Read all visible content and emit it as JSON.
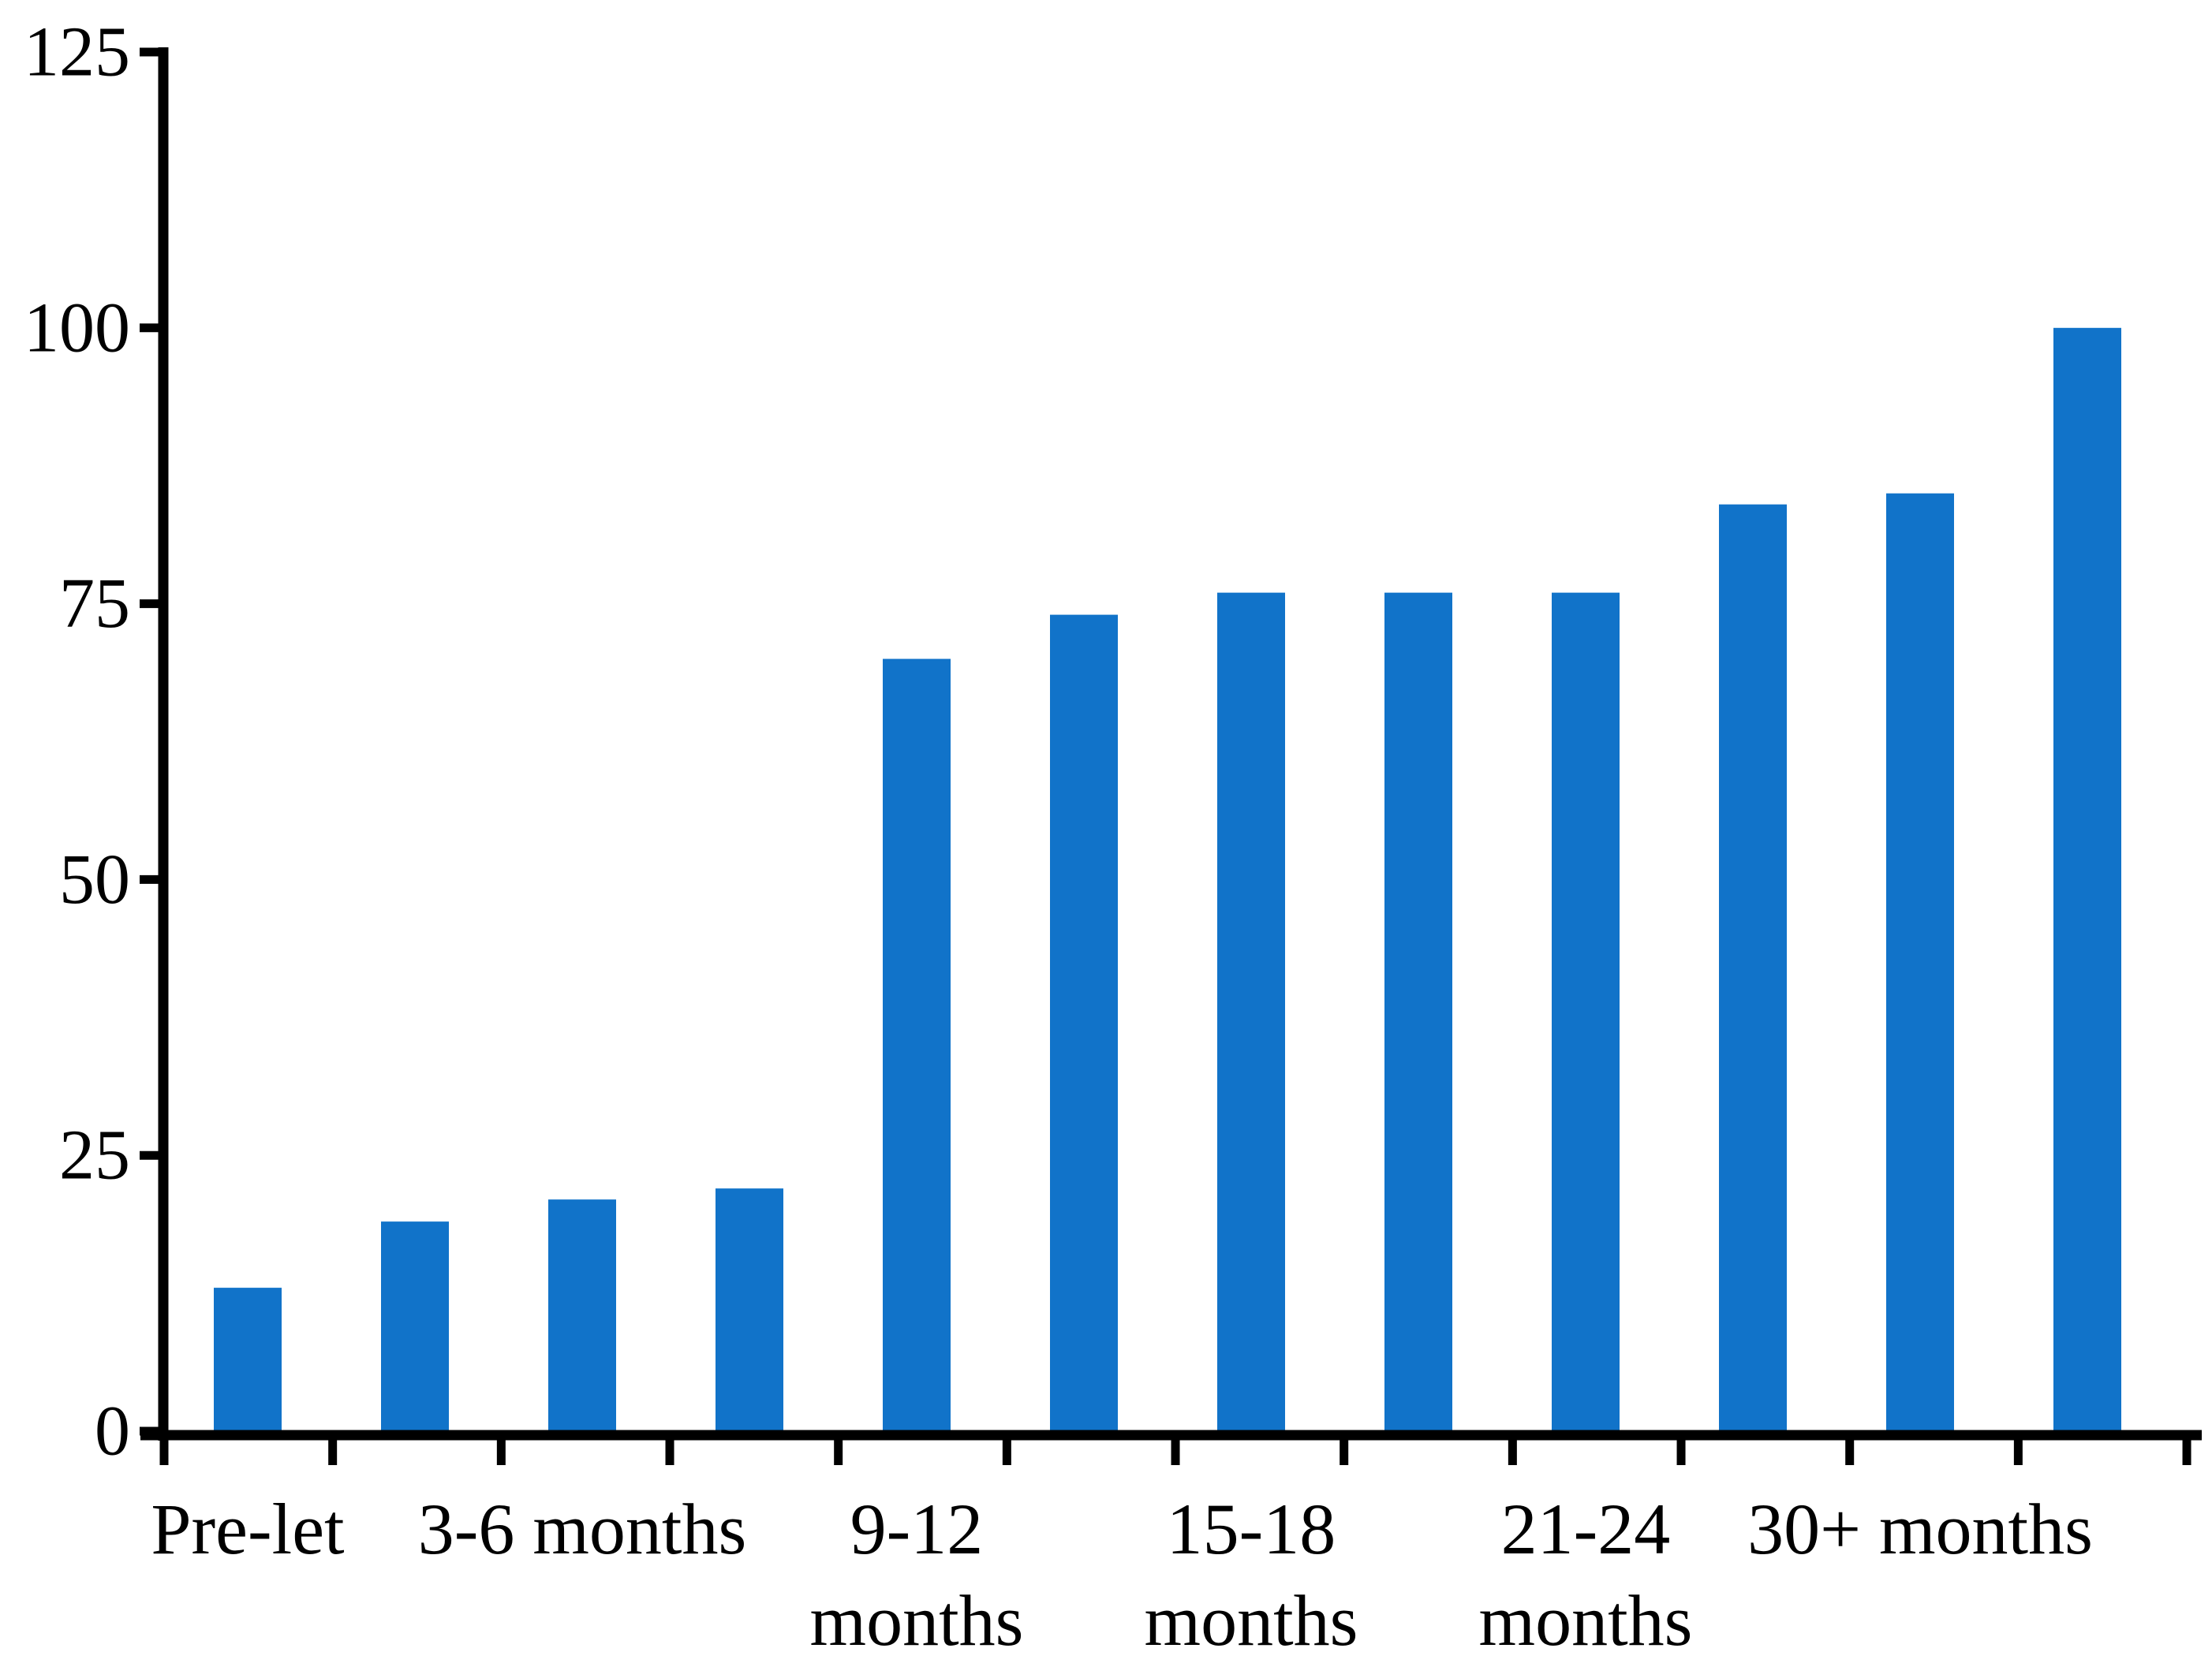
{
  "page": {
    "background": "#ffffff"
  },
  "chart_data": {
    "type": "bar",
    "title": "",
    "xlabel": "",
    "ylabel": "",
    "categories": [
      "Pre-let",
      "",
      "3-6 months",
      "",
      "9-12\nmonths",
      "",
      "15-18\nmonths",
      "",
      "21-24\nmonths",
      "",
      "30+ months",
      ""
    ],
    "values": [
      13,
      19,
      21,
      22,
      70,
      74,
      76,
      76,
      76,
      84,
      85,
      100
    ],
    "ylim": [
      0,
      125
    ],
    "yticks": [
      0,
      25,
      50,
      75,
      100,
      125
    ],
    "grid": false,
    "legend": false,
    "bar_color": "#1173C9",
    "axis_color": "#000000",
    "label_color": "#000000"
  }
}
